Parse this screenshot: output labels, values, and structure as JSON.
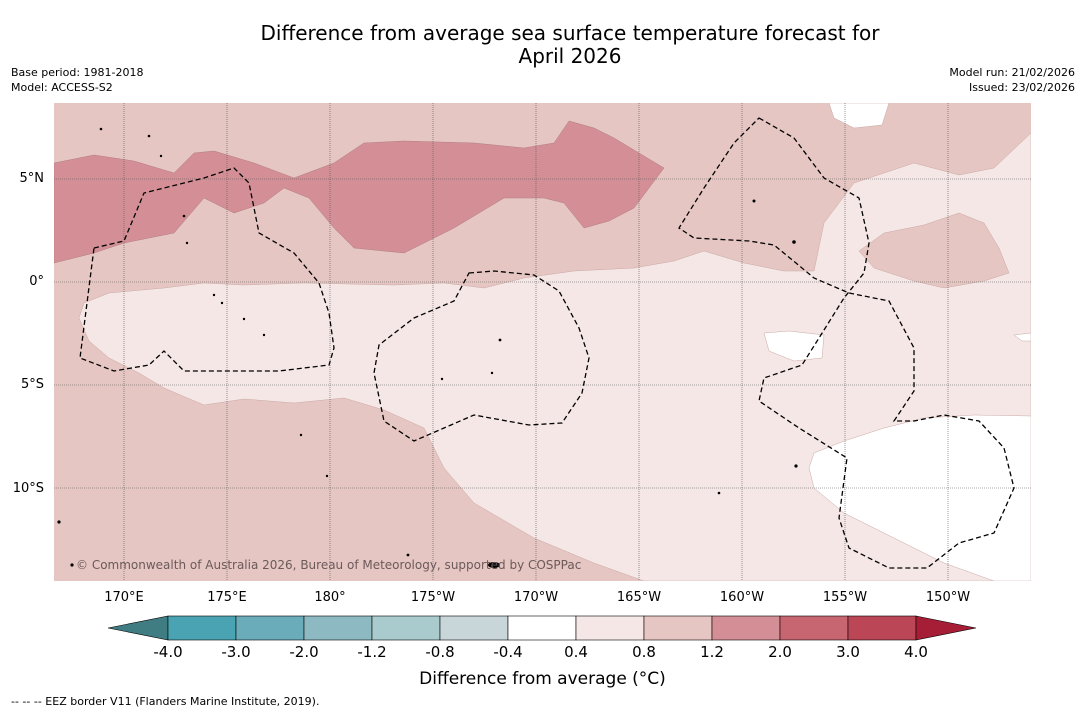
{
  "title_line1": "Difference from average sea surface temperature forecast for",
  "title_line2": "April 2026",
  "base_period": "Base period: 1981-2018",
  "model": "Model: ACCESS-S2",
  "model_run": "Model run: 21/02/2026",
  "issued": "Issued: 23/02/2026",
  "copyright": "© Commonwealth of Australia 2026, Bureau of Meteorology, supported by COSPPac",
  "lat_labels": [
    "5°N",
    "0°",
    "5°S",
    "10°S"
  ],
  "lon_labels": [
    "170°E",
    "175°E",
    "180°",
    "175°W",
    "170°W",
    "165°W",
    "160°W",
    "155°W",
    "150°W"
  ],
  "colorbar": {
    "ticks": [
      "-4.0",
      "-3.0",
      "-2.0",
      "-1.2",
      "-0.8",
      "-0.4",
      "0.4",
      "0.8",
      "1.2",
      "2.0",
      "3.0",
      "4.0"
    ],
    "colors": [
      "#4aa3b2",
      "#6aacba",
      "#8db9c2",
      "#aacbce",
      "#c8d6d9",
      "#ffffff",
      "#f5e7e6",
      "#e6c6c2",
      "#d48f96",
      "#c76571",
      "#bb4655"
    ],
    "low_extend_color": "#3f7d83",
    "high_extend_color": "#a51e36",
    "label": "Difference from average (°C)"
  },
  "legend_text": "-- -- -- EEZ border V11 (Flanders Marine Institute, 2019).",
  "map_colors": {
    "band_0_4_0_8": "#f5e7e6",
    "band_0_8_1_2": "#e6c6c2",
    "band_1_2_2_0": "#d48f96",
    "neutral": "#ffffff"
  }
}
